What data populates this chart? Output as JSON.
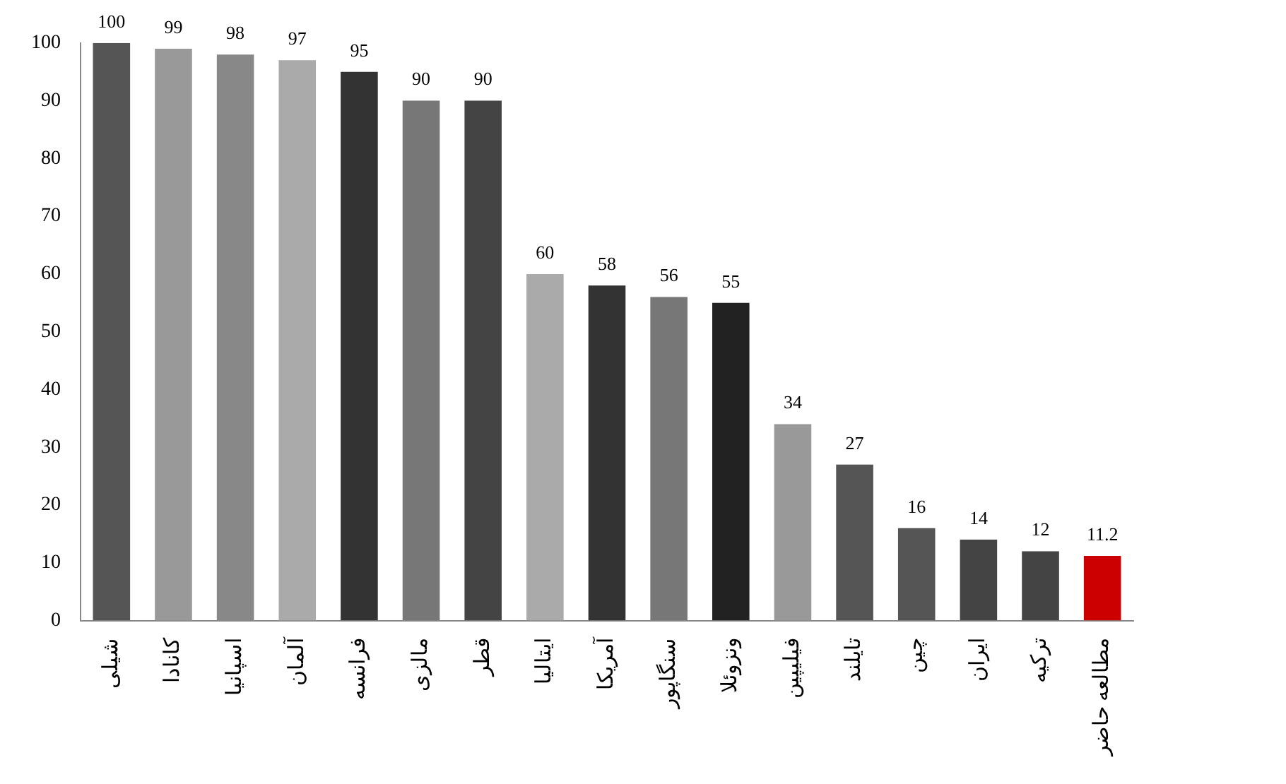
{
  "chart_data": {
    "type": "bar",
    "categories": [
      "شیلی",
      "کانادا",
      "اسپانیا",
      "آلمان",
      "فرانسه",
      "مالزی",
      "قطر",
      "ایتالیا",
      "آمریکا",
      "سنگاپور",
      "ونزوئلا",
      "فیلیپین",
      "تایلند",
      "چین",
      "ایران",
      "ترکیه",
      "مطالعه حاضر"
    ],
    "values": [
      100,
      99,
      98,
      97,
      95,
      90,
      90,
      60,
      58,
      56,
      55,
      34,
      27,
      16,
      14,
      12,
      11.2
    ],
    "colors": [
      "#555555",
      "#999999",
      "#888888",
      "#aaaaaa",
      "#333333",
      "#777777",
      "#444444",
      "#aaaaaa",
      "#333333",
      "#777777",
      "#222222",
      "#999999",
      "#555555",
      "#555555",
      "#444444",
      "#444444",
      "#cc0000"
    ],
    "ylim": [
      0,
      100
    ],
    "yticks": [
      0,
      10,
      20,
      30,
      40,
      50,
      60,
      70,
      80,
      90,
      100
    ],
    "grid": false,
    "legend": false,
    "data_labels": true
  }
}
